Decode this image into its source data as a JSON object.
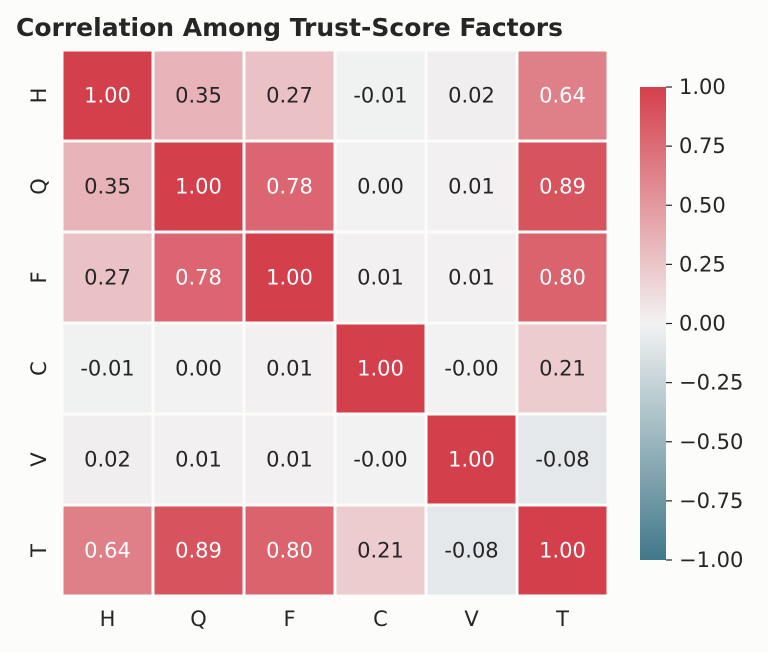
{
  "chart_data": {
    "type": "heatmap",
    "title": "Correlation Among Trust-Score Factors",
    "xlabel": "",
    "ylabel": "",
    "x_categories": [
      "H",
      "Q",
      "F",
      "C",
      "V",
      "T"
    ],
    "y_categories": [
      "H",
      "Q",
      "F",
      "C",
      "V",
      "T"
    ],
    "values": [
      [
        1.0,
        0.35,
        0.27,
        -0.01,
        0.02,
        0.64
      ],
      [
        0.35,
        1.0,
        0.78,
        0.0,
        0.01,
        0.89
      ],
      [
        0.27,
        0.78,
        1.0,
        0.01,
        0.01,
        0.8
      ],
      [
        -0.01,
        0.0,
        0.01,
        1.0,
        -0.0,
        0.21
      ],
      [
        0.02,
        0.01,
        0.01,
        -0.0,
        1.0,
        -0.08
      ],
      [
        0.64,
        0.89,
        0.8,
        0.21,
        -0.08,
        1.0
      ]
    ],
    "value_labels": [
      [
        "1.00",
        "0.35",
        "0.27",
        "-0.01",
        "0.02",
        "0.64"
      ],
      [
        "0.35",
        "1.00",
        "0.78",
        "0.00",
        "0.01",
        "0.89"
      ],
      [
        "0.27",
        "0.78",
        "1.00",
        "0.01",
        "0.01",
        "0.80"
      ],
      [
        "-0.01",
        "0.00",
        "0.01",
        "1.00",
        "-0.00",
        "0.21"
      ],
      [
        "0.02",
        "0.01",
        "0.01",
        "-0.00",
        "1.00",
        "-0.08"
      ],
      [
        "0.64",
        "0.89",
        "0.80",
        "0.21",
        "-0.08",
        "1.00"
      ]
    ],
    "vmin": -1.0,
    "vmax": 1.0,
    "colorbar_ticks": [
      1.0,
      0.75,
      0.5,
      0.25,
      0.0,
      -0.25,
      -0.5,
      -0.75,
      -1.0
    ],
    "colorbar_tick_labels": [
      "1.00",
      "0.75",
      "0.50",
      "0.25",
      "0.00",
      "−0.25",
      "−0.50",
      "−0.75",
      "−1.00"
    ],
    "colormap": {
      "negative": "#41788a",
      "center": "#f2f2f2",
      "positive": "#d43f4c"
    },
    "grid": false,
    "cell_separator_color": "#ffffff"
  }
}
